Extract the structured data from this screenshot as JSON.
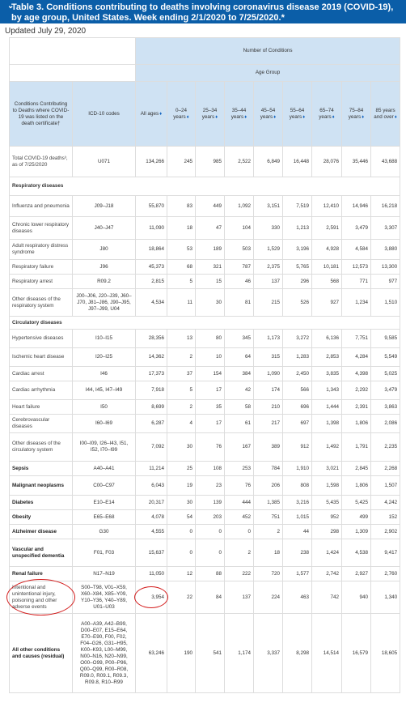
{
  "banner": {
    "chevron_icon": "chevron-down",
    "title": "Table 3. Conditions contributing to deaths involving coronavirus disease 2019 (COVID-19), by age group, United States. Week ending 2/1/2020 to 7/25/2020.*"
  },
  "updated": "Updated July 29, 2020",
  "table": {
    "super_header": "Number of Conditions",
    "age_group_header": "Age Group",
    "col_condition": "Conditions Contributing to Deaths where COVID-19 was listed on the death certificate†",
    "col_icd": "ICD-10 codes",
    "age_cols": [
      "All ages",
      "0–24 years",
      "25–34 years",
      "35–44 years",
      "45–54 years",
      "55–64 years",
      "65–74 years",
      "75–84 years",
      "85 years and over"
    ],
    "rows": [
      {
        "type": "data",
        "bold": false,
        "label": "Total COVID-19 deaths³, as of 7/25/2020",
        "icd": "U071",
        "values": [
          "134,266",
          "245",
          "985",
          "2,522",
          "6,849",
          "16,448",
          "28,076",
          "35,446",
          "43,688"
        ]
      },
      {
        "type": "group",
        "label": "Respiratory diseases"
      },
      {
        "type": "data",
        "bold": false,
        "label": "Influenza and pneumonia",
        "icd": "J09–J18",
        "values": [
          "55,870",
          "83",
          "449",
          "1,092",
          "3,151",
          "7,519",
          "12,410",
          "14,946",
          "16,218"
        ]
      },
      {
        "type": "data",
        "bold": false,
        "label": "Chronic lower respiratory diseases",
        "icd": "J40–J47",
        "values": [
          "11,090",
          "18",
          "47",
          "104",
          "330",
          "1,213",
          "2,591",
          "3,479",
          "3,307"
        ]
      },
      {
        "type": "data",
        "bold": false,
        "label": "Adult respiratory distress syndrome",
        "icd": "J80",
        "values": [
          "18,864",
          "53",
          "189",
          "503",
          "1,529",
          "3,196",
          "4,928",
          "4,584",
          "3,880"
        ]
      },
      {
        "type": "data",
        "bold": false,
        "label": "Respiratory failure",
        "icd": "J96",
        "values": [
          "45,373",
          "68",
          "321",
          "787",
          "2,375",
          "5,765",
          "10,181",
          "12,573",
          "13,300"
        ]
      },
      {
        "type": "data",
        "bold": false,
        "label": "Respiratory arrest",
        "icd": "R09.2",
        "values": [
          "2,815",
          "5",
          "15",
          "46",
          "137",
          "296",
          "568",
          "771",
          "977"
        ]
      },
      {
        "type": "data",
        "bold": false,
        "label": "Other diseases of the respiratory system",
        "icd": "J00–J06, J20–J39, J60–J70, J81–J86, J90–J95, J97–J99, U04",
        "values": [
          "4,534",
          "11",
          "30",
          "81",
          "215",
          "526",
          "927",
          "1,234",
          "1,510"
        ]
      },
      {
        "type": "group",
        "label": "Circulatory diseases"
      },
      {
        "type": "data",
        "bold": false,
        "label": "Hypertensive diseases",
        "icd": "I10–I15",
        "values": [
          "28,356",
          "13",
          "80",
          "345",
          "1,173",
          "3,272",
          "6,136",
          "7,751",
          "9,585"
        ]
      },
      {
        "type": "data",
        "bold": false,
        "label": "Ischemic heart disease",
        "icd": "I20–I25",
        "values": [
          "14,362",
          "2",
          "10",
          "64",
          "315",
          "1,283",
          "2,853",
          "4,284",
          "5,549"
        ]
      },
      {
        "type": "data",
        "bold": false,
        "label": "Cardiac arrest",
        "icd": "I46",
        "values": [
          "17,373",
          "37",
          "154",
          "384",
          "1,090",
          "2,450",
          "3,835",
          "4,398",
          "5,025"
        ]
      },
      {
        "type": "data",
        "bold": false,
        "label": "Cardiac arrhythmia",
        "icd": "I44, I45, I47–I49",
        "values": [
          "7,918",
          "5",
          "17",
          "42",
          "174",
          "566",
          "1,343",
          "2,292",
          "3,479"
        ]
      },
      {
        "type": "data",
        "bold": false,
        "label": "Heart failure",
        "icd": "I50",
        "values": [
          "8,699",
          "2",
          "35",
          "58",
          "210",
          "696",
          "1,444",
          "2,391",
          "3,863"
        ]
      },
      {
        "type": "data",
        "bold": false,
        "label": "Cerebrovascular diseases",
        "icd": "I60–I69",
        "values": [
          "6,287",
          "4",
          "17",
          "61",
          "217",
          "697",
          "1,398",
          "1,806",
          "2,086"
        ]
      },
      {
        "type": "data",
        "bold": false,
        "label": "Other diseases of the circulatory system",
        "icd": "I00–I09, I26–I43, I51, I52, I70–I99",
        "values": [
          "7,092",
          "30",
          "76",
          "167",
          "389",
          "912",
          "1,492",
          "1,791",
          "2,235"
        ]
      },
      {
        "type": "data",
        "bold": true,
        "label": "Sepsis",
        "icd": "A40–A41",
        "values": [
          "11,214",
          "25",
          "108",
          "253",
          "784",
          "1,910",
          "3,021",
          "2,845",
          "2,268"
        ]
      },
      {
        "type": "data",
        "bold": true,
        "label": "Malignant neoplasms",
        "icd": "C00–C97",
        "values": [
          "6,043",
          "19",
          "23",
          "76",
          "206",
          "808",
          "1,598",
          "1,806",
          "1,507"
        ]
      },
      {
        "type": "data",
        "bold": true,
        "label": "Diabetes",
        "icd": "E10–E14",
        "values": [
          "20,317",
          "30",
          "139",
          "444",
          "1,385",
          "3,216",
          "5,435",
          "5,425",
          "4,242"
        ]
      },
      {
        "type": "data",
        "bold": true,
        "label": "Obesity",
        "icd": "E65–E68",
        "values": [
          "4,078",
          "54",
          "203",
          "452",
          "751",
          "1,015",
          "952",
          "499",
          "152"
        ]
      },
      {
        "type": "data",
        "bold": true,
        "label": "Alzheimer disease",
        "icd": "G30",
        "values": [
          "4,555",
          "0",
          "0",
          "0",
          "2",
          "44",
          "298",
          "1,309",
          "2,902"
        ]
      },
      {
        "type": "data",
        "bold": true,
        "label": "Vascular and unspecified dementia",
        "icd": "F01, F03",
        "values": [
          "15,637",
          "0",
          "0",
          "2",
          "18",
          "238",
          "1,424",
          "4,538",
          "9,417"
        ]
      },
      {
        "type": "data",
        "bold": true,
        "label": "Renal failure",
        "icd": "N17–N19",
        "values": [
          "11,050",
          "12",
          "88",
          "222",
          "720",
          "1,577",
          "2,742",
          "2,927",
          "2,760"
        ]
      },
      {
        "type": "data",
        "bold": false,
        "highlight": true,
        "label": "Intentional and unintentional injury, poisoning and other adverse events",
        "icd": "S00–T98, V01–X59, X60–X84, X85–Y09, Y10–Y36, Y40–Y89, U01–U03",
        "values": [
          "3,954",
          "22",
          "84",
          "137",
          "224",
          "463",
          "742",
          "940",
          "1,340"
        ]
      },
      {
        "type": "data",
        "bold": true,
        "label": "All other conditions and causes (residual)",
        "icd": "A00–A39, A42–B99, D00–E07, E15–E64, E70–E90, F00, F02, F04–G26, G31–H95, K00–K93, L00–M99, N00–N16, N20–N99, O00–O99, P00–P96, Q00–Q99, R00–R08, R09.0, R09.1, R09.3, R09.8, R10–R99",
        "values": [
          "63,246",
          "190",
          "541",
          "1,174",
          "3,337",
          "8,298",
          "14,514",
          "16,579",
          "18,605"
        ]
      }
    ]
  }
}
